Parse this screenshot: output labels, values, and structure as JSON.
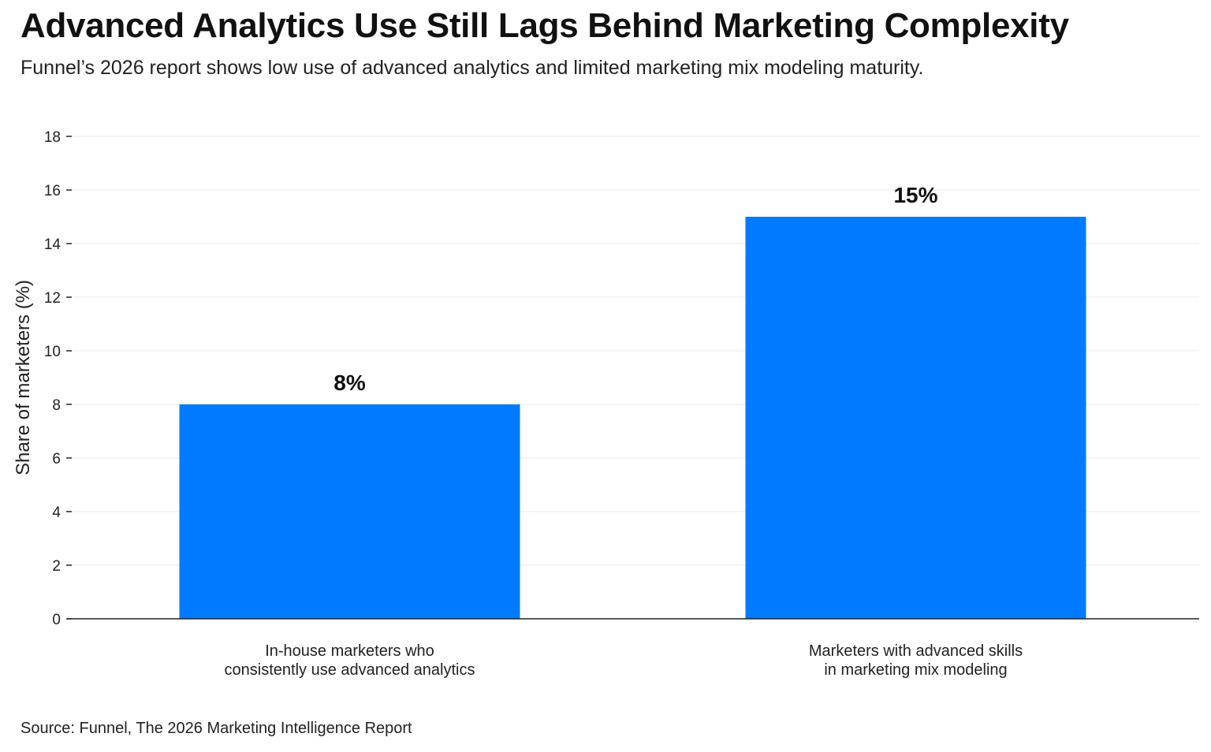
{
  "title": "Advanced Analytics Use Still Lags Behind Marketing Complexity",
  "subtitle": "Funnel’s 2026 report shows low use of advanced analytics and limited marketing mix modeling maturity.",
  "source": "Source: Funnel, The 2026 Marketing Intelligence Report",
  "chart_data": {
    "type": "bar",
    "categories": [
      [
        "In-house marketers who",
        "consistently use advanced analytics"
      ],
      [
        "Marketers with advanced skills",
        "in marketing mix modeling"
      ]
    ],
    "values": [
      8,
      15
    ],
    "data_labels": [
      "8%",
      "15%"
    ],
    "xlabel": "",
    "ylabel": "Share of marketers (%)",
    "ylim": [
      0,
      18
    ],
    "yticks": [
      0,
      2,
      4,
      6,
      8,
      10,
      12,
      14,
      16,
      18
    ],
    "grid": "horizontal",
    "bar_color": "#007BFF"
  }
}
